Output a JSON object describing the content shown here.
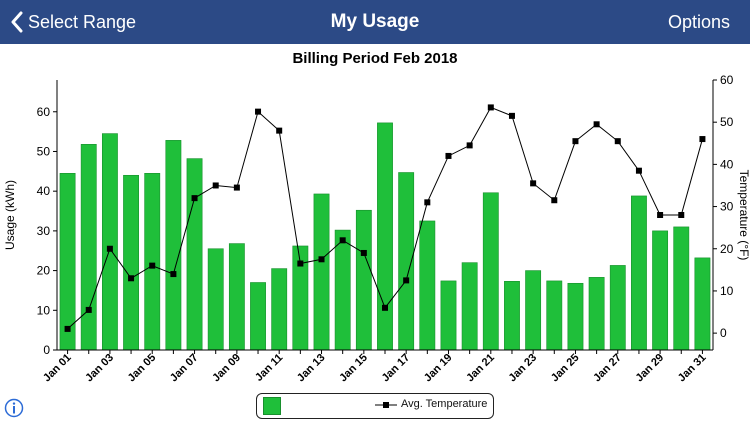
{
  "navbar": {
    "back_label": "Select Range",
    "title": "My Usage",
    "options_label": "Options"
  },
  "chart_data": {
    "type": "bar",
    "title": "Billing Period Feb 2018",
    "ylabel": "Usage (kWh)",
    "ylabel_right": "Temperature (°F)",
    "ylim": [
      0,
      68
    ],
    "ylim_right": [
      -4,
      60
    ],
    "yticks": [
      0,
      10,
      20,
      30,
      40,
      50,
      60
    ],
    "yticks_right": [
      0,
      10,
      20,
      30,
      40,
      50,
      60
    ],
    "categories": [
      "Jan 01",
      "Jan 02",
      "Jan 03",
      "Jan 04",
      "Jan 05",
      "Jan 06",
      "Jan 07",
      "Jan 08",
      "Jan 09",
      "Jan 10",
      "Jan 11",
      "Jan 12",
      "Jan 13",
      "Jan 14",
      "Jan 15",
      "Jan 16",
      "Jan 17",
      "Jan 18",
      "Jan 19",
      "Jan 20",
      "Jan 21",
      "Jan 22",
      "Jan 23",
      "Jan 24",
      "Jan 25",
      "Jan 26",
      "Jan 27",
      "Jan 28",
      "Jan 29",
      "Jan 30",
      "Jan 31"
    ],
    "tick_labels": [
      "Jan 01",
      "Jan 03",
      "Jan 05",
      "Jan 07",
      "Jan 09",
      "Jan 11",
      "Jan 13",
      "Jan 15",
      "Jan 17",
      "Jan 19",
      "Jan 21",
      "Jan 23",
      "Jan 25",
      "Jan 27",
      "Jan 29",
      "Jan 31"
    ],
    "series": [
      {
        "values": [
          44.5,
          51.8,
          54.5,
          44,
          44.5,
          52.8,
          48.2,
          25.5,
          26.8,
          17,
          20.5,
          26.2,
          39.3,
          30.2,
          35.2,
          57.2,
          44.7,
          32.5,
          17.4,
          22,
          39.6,
          17.3,
          20,
          17.4,
          16.8,
          18.3,
          21.3,
          38.8,
          30,
          31,
          23.2
        ]
      },
      {
        "name": "Avg. Temperature",
        "axis": "right",
        "values": [
          1,
          5.5,
          20,
          13,
          16,
          14,
          32,
          35,
          34.5,
          52.5,
          48,
          16.5,
          17.5,
          22,
          19,
          6,
          12.5,
          31,
          42,
          44.5,
          53.5,
          51.5,
          35.5,
          31.5,
          45.5,
          49.5,
          45.5,
          38.5,
          28,
          28,
          46
        ]
      }
    ],
    "colors": {
      "bar": "#1fbf3a",
      "bar_border": "#178f2c",
      "line": "#000000"
    },
    "grid": false
  },
  "legend": {
    "series_label": "Avg. Temperature"
  },
  "icons": {
    "back": "chevron-left-icon",
    "info": "info-icon"
  }
}
